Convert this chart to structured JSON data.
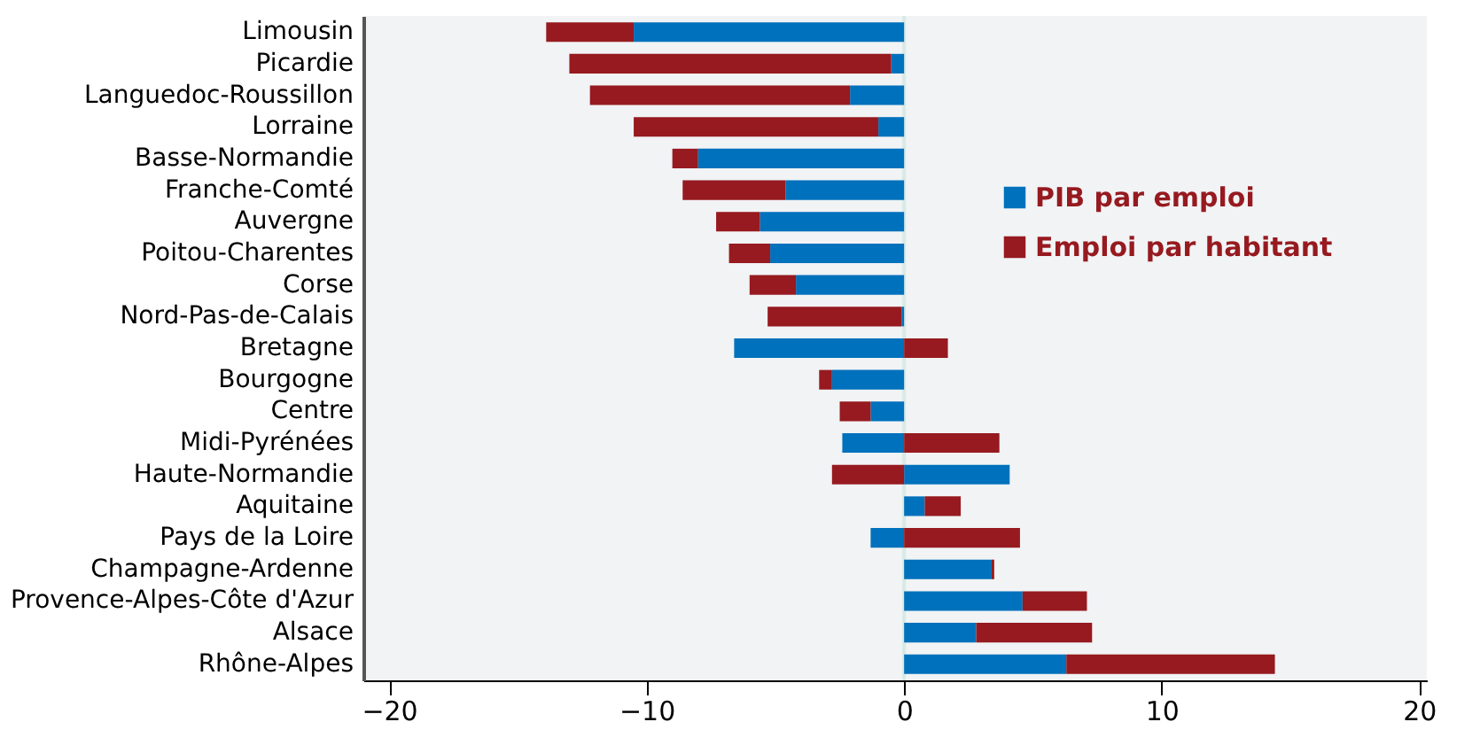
{
  "chart_data": {
    "type": "bar",
    "orientation": "horizontal",
    "stacked": true,
    "categories": [
      "Limousin",
      "Picardie",
      "Languedoc-Roussillon",
      "Lorraine",
      "Basse-Normandie",
      "Franche-Comté",
      "Auvergne",
      "Poitou-Charentes",
      "Corse",
      "Nord-Pas-de-Calais",
      "Bretagne",
      "Bourgogne",
      "Centre",
      "Midi-Pyrénées",
      "Haute-Normandie",
      "Aquitaine",
      "Pays de la Loire",
      "Champagne-Ardenne",
      "Provence-Alpes-Côte d'Azur",
      "Alsace",
      "Rhône-Alpes"
    ],
    "series": [
      {
        "name": "PIB par emploi",
        "color": "#0071bc",
        "values": [
          -10.5,
          -0.5,
          -2.1,
          -1.0,
          -8.0,
          -4.6,
          -5.6,
          -5.2,
          -4.2,
          -0.1,
          -6.6,
          -2.8,
          -1.3,
          -2.4,
          4.1,
          0.8,
          -1.3,
          3.4,
          4.6,
          2.8,
          6.3
        ]
      },
      {
        "name": "Emploi par habitant",
        "color": "#961a1f",
        "values": [
          -3.4,
          -12.5,
          -10.1,
          -9.5,
          -1.0,
          -4.0,
          -1.7,
          -1.6,
          -1.8,
          -5.2,
          1.7,
          -0.5,
          -1.2,
          3.7,
          -2.8,
          1.4,
          4.5,
          0.1,
          2.5,
          4.5,
          8.1
        ]
      }
    ],
    "xlim": [
      -21,
      20.3
    ],
    "xticks": [
      -20,
      -10,
      0,
      10,
      20
    ],
    "ref_lines": [
      {
        "axis": "x",
        "value": 0,
        "color": "#d6ebe5"
      }
    ],
    "legend": "top right",
    "grid": false
  }
}
